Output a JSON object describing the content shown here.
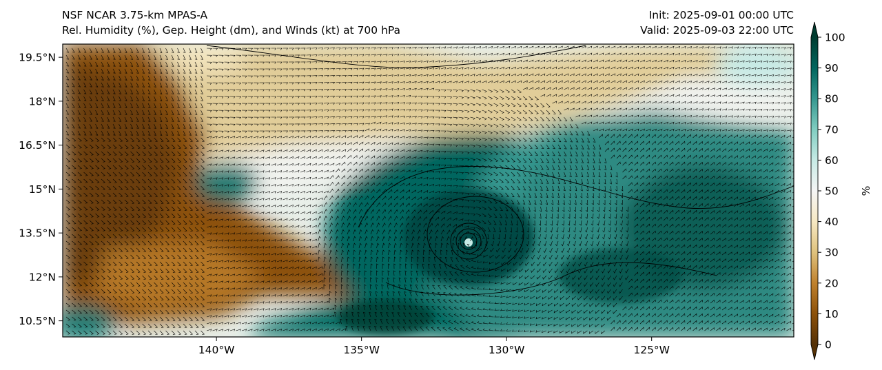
{
  "header": {
    "model_title": "NSF NCAR 3.75-km MPAS-A",
    "field_title": "Rel. Humidity (%), Gep. Height (dm), and Winds (kt) at 700 hPa",
    "init": "Init: 2025-09-01 00:00 UTC",
    "valid": "Valid: 2025-09-03 22:00 UTC"
  },
  "map": {
    "lon_range": [
      -145.3,
      -120.1
    ],
    "lat_range": [
      9.95,
      19.95
    ],
    "lat_ticks": [
      {
        "value": 19.5,
        "label": "19.5°N"
      },
      {
        "value": 18,
        "label": "18°N"
      },
      {
        "value": 16.5,
        "label": "16.5°N"
      },
      {
        "value": 15,
        "label": "15°N"
      },
      {
        "value": 13.5,
        "label": "13.5°N"
      },
      {
        "value": 12,
        "label": "12°N"
      },
      {
        "value": 10.5,
        "label": "10.5°N"
      }
    ],
    "lon_ticks": [
      {
        "value": -140,
        "label": "140°W"
      },
      {
        "value": -135,
        "label": "135°W"
      },
      {
        "value": -130,
        "label": "130°W"
      },
      {
        "value": -125,
        "label": "125°W"
      }
    ],
    "cyclone_center": {
      "lon": -131.1,
      "lat": 13.2
    },
    "height_contours_dm": [
      308,
      309,
      310,
      311,
      312,
      313,
      314
    ]
  },
  "colorbar": {
    "label": "%",
    "min": 0,
    "max": 100,
    "ticks": [
      {
        "value": 0,
        "label": "0"
      },
      {
        "value": 10,
        "label": "10"
      },
      {
        "value": 20,
        "label": "20"
      },
      {
        "value": 30,
        "label": "30"
      },
      {
        "value": 40,
        "label": "40"
      },
      {
        "value": 50,
        "label": "50"
      },
      {
        "value": 60,
        "label": "60"
      },
      {
        "value": 70,
        "label": "70"
      },
      {
        "value": 80,
        "label": "80"
      },
      {
        "value": 90,
        "label": "90"
      },
      {
        "value": 100,
        "label": "100"
      }
    ],
    "colors": [
      "#543005",
      "#8c510a",
      "#bf812d",
      "#dfc27d",
      "#f6e8c3",
      "#f5f5f5",
      "#c7eae5",
      "#80cdc1",
      "#35978f",
      "#01665e",
      "#003c30"
    ]
  }
}
